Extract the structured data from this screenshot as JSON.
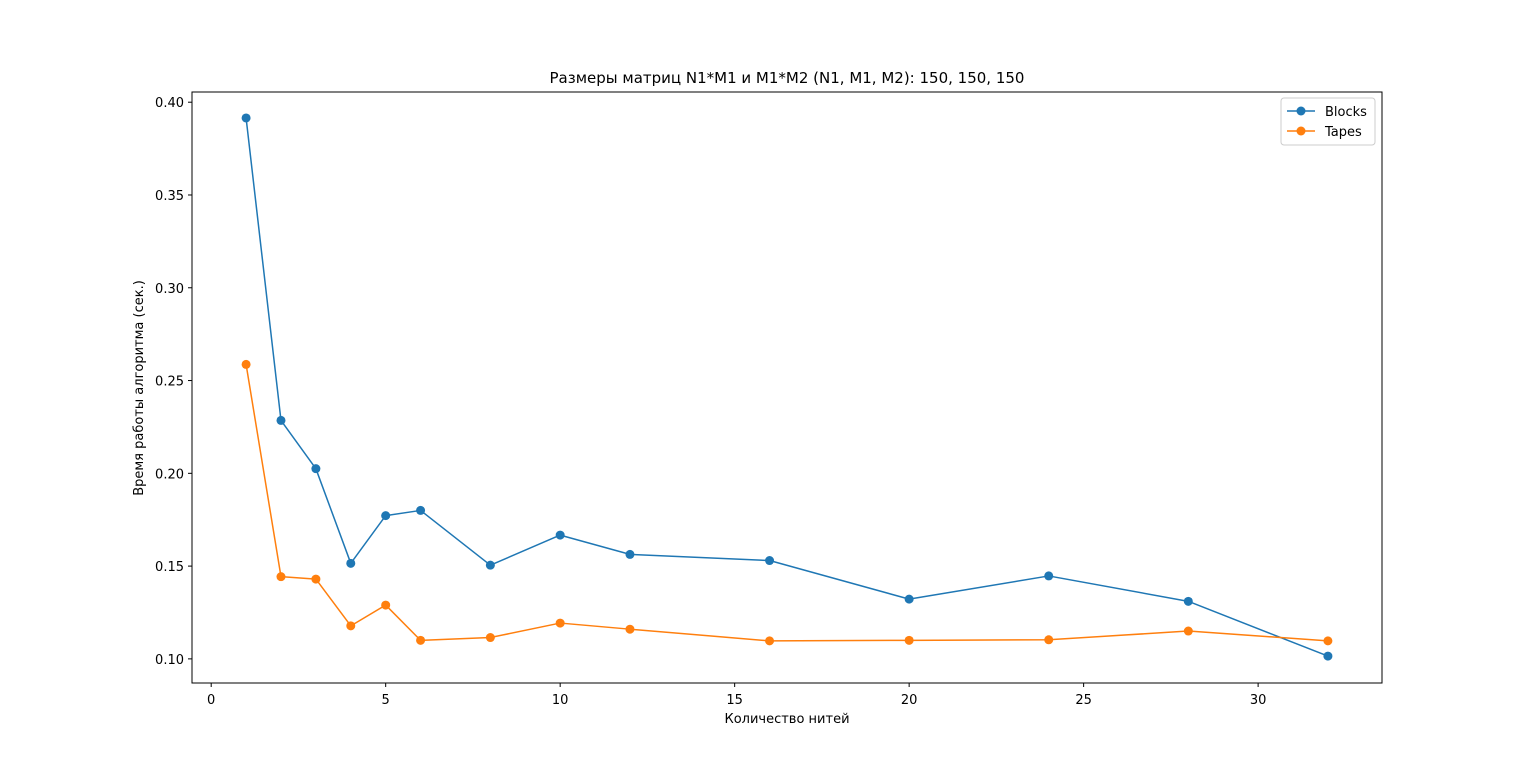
{
  "chart_data": {
    "type": "line",
    "title": "Размеры матриц N1*M1 и M1*M2 (N1, M1, M2): 150, 150, 150",
    "xlabel": "Количество нитей",
    "ylabel": "Время работы алгоритма (сек.)",
    "xlim": [
      -0.55,
      33.55
    ],
    "ylim": [
      0.087,
      0.4055
    ],
    "x_ticks": [
      0,
      5,
      10,
      15,
      20,
      25,
      30
    ],
    "x_tick_labels": [
      "0",
      "5",
      "10",
      "15",
      "20",
      "25",
      "30"
    ],
    "y_ticks": [
      0.1,
      0.15,
      0.2,
      0.25,
      0.3,
      0.35,
      0.4
    ],
    "y_tick_labels": [
      "0.10",
      "0.15",
      "0.20",
      "0.25",
      "0.30",
      "0.35",
      "0.40"
    ],
    "grid": false,
    "legend_position": "top-right",
    "x": [
      1,
      2,
      3,
      4,
      5,
      6,
      8,
      10,
      12,
      16,
      20,
      24,
      28,
      32
    ],
    "series": [
      {
        "name": "Blocks",
        "color": "#1f77b4",
        "marker": "circle",
        "values": [
          0.3915,
          0.2285,
          0.2025,
          0.1515,
          0.1772,
          0.18,
          0.1505,
          0.1667,
          0.1563,
          0.153,
          0.1322,
          0.1447,
          0.131,
          0.1015
        ]
      },
      {
        "name": "Tapes",
        "color": "#ff7f0e",
        "marker": "circle",
        "values": [
          0.2587,
          0.1443,
          0.143,
          0.1178,
          0.129,
          0.11,
          0.1115,
          0.1193,
          0.116,
          0.1097,
          0.11,
          0.1103,
          0.115,
          0.1097
        ]
      }
    ]
  }
}
